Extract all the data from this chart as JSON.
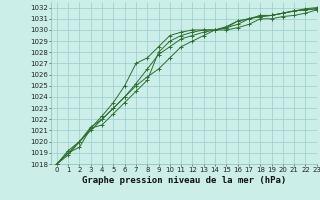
{
  "title": "Graphe pression niveau de la mer (hPa)",
  "bg_color": "#cceee8",
  "grid_color": "#99cccc",
  "line_color": "#2d6e2d",
  "xlim": [
    -0.5,
    23
  ],
  "ylim": [
    1018,
    1032.5
  ],
  "xticks": [
    0,
    1,
    2,
    3,
    4,
    5,
    6,
    7,
    8,
    9,
    10,
    11,
    12,
    13,
    14,
    15,
    16,
    17,
    18,
    19,
    20,
    21,
    22,
    23
  ],
  "yticks": [
    1018,
    1019,
    1020,
    1021,
    1022,
    1023,
    1024,
    1025,
    1026,
    1027,
    1028,
    1029,
    1030,
    1031,
    1032
  ],
  "series": [
    [
      1018.0,
      1019.0,
      1019.5,
      1021.2,
      1021.5,
      1022.5,
      1023.5,
      1024.5,
      1025.5,
      1028.0,
      1029.0,
      1029.5,
      1029.8,
      1030.0,
      1030.0,
      1030.0,
      1030.2,
      1030.5,
      1031.0,
      1031.0,
      1031.2,
      1031.3,
      1031.5,
      1031.8
    ],
    [
      1018.0,
      1019.2,
      1020.0,
      1021.3,
      1022.0,
      1023.0,
      1024.0,
      1025.2,
      1026.5,
      1027.8,
      1028.5,
      1029.2,
      1029.5,
      1029.8,
      1030.0,
      1030.2,
      1030.5,
      1031.0,
      1031.2,
      1031.3,
      1031.5,
      1031.7,
      1031.8,
      1031.9
    ],
    [
      1018.0,
      1018.8,
      1020.0,
      1021.0,
      1022.0,
      1023.0,
      1024.0,
      1025.0,
      1025.8,
      1026.5,
      1027.5,
      1028.5,
      1029.0,
      1029.5,
      1030.0,
      1030.3,
      1030.8,
      1031.0,
      1031.2,
      1031.3,
      1031.5,
      1031.7,
      1031.8,
      1031.9
    ],
    [
      1018.0,
      1019.0,
      1020.0,
      1021.2,
      1022.3,
      1023.5,
      1025.0,
      1027.0,
      1027.5,
      1028.5,
      1029.5,
      1029.8,
      1030.0,
      1030.0,
      1030.0,
      1030.2,
      1030.8,
      1031.0,
      1031.3,
      1031.3,
      1031.5,
      1031.7,
      1031.9,
      1032.0
    ]
  ],
  "tick_fontsize": 5,
  "label_fontsize": 6.5,
  "linewidth": 0.7,
  "markersize": 2.5,
  "marker": "+"
}
